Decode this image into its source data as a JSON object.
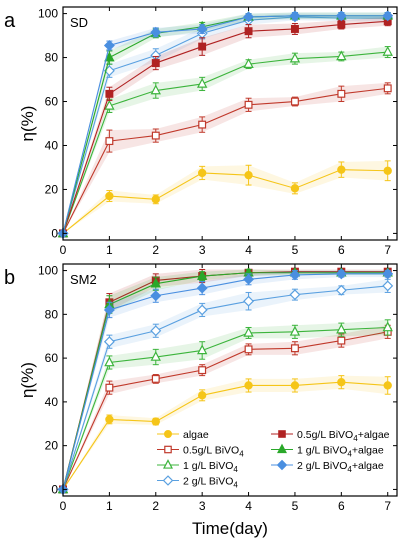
{
  "chart_data": [
    {
      "type": "line",
      "panel_letter": "a",
      "inset_label": "SD",
      "xlabel": "",
      "ylabel": "η(%)",
      "xlim": [
        0,
        7.2
      ],
      "ylim": [
        -3,
        103
      ],
      "x_ticks": [
        0,
        1,
        2,
        3,
        4,
        5,
        6,
        7
      ],
      "y_ticks": [
        0,
        20,
        40,
        60,
        80,
        100
      ],
      "x": [
        0,
        1,
        2,
        3,
        4,
        5,
        6,
        7
      ],
      "series": [
        {
          "name": "algae",
          "color": "#f5c518",
          "marker": "circle",
          "filled": true,
          "values": [
            0,
            17,
            15.5,
            27.5,
            26.5,
            20.5,
            29,
            28.5
          ],
          "errors": [
            0,
            2.5,
            2,
            3,
            4.5,
            2.5,
            3.5,
            4.5
          ]
        },
        {
          "name": "0.5g/L BiVO4",
          "color": "#c0392b",
          "marker": "square",
          "filled": false,
          "values": [
            0,
            42,
            44.5,
            49.5,
            58.5,
            60,
            63.5,
            66
          ],
          "errors": [
            0,
            5,
            3,
            3.5,
            3,
            2,
            3.5,
            2.5
          ]
        },
        {
          "name": "1 g/L BiVO4",
          "color": "#3cb43c",
          "marker": "triangle",
          "filled": false,
          "values": [
            0,
            58,
            65,
            68,
            77,
            79.5,
            80.5,
            82.5
          ],
          "errors": [
            0,
            3,
            3.5,
            3,
            2,
            2.5,
            2,
            2.5
          ]
        },
        {
          "name": "2 g/L BiVO4",
          "color": "#5aa0e0",
          "marker": "diamond",
          "filled": false,
          "values": [
            0,
            74,
            81,
            91,
            97,
            98.5,
            98,
            98
          ],
          "errors": [
            0,
            3,
            3,
            2.5,
            2,
            1.5,
            1.5,
            1.5
          ]
        },
        {
          "name": "0.5g/L BiVO4+algae",
          "color": "#b02222",
          "marker": "square",
          "filled": true,
          "values": [
            0,
            63.5,
            77.5,
            85,
            92,
            93,
            95,
            96.5
          ],
          "errors": [
            0,
            3,
            3,
            4,
            3,
            2.5,
            2,
            2
          ]
        },
        {
          "name": "1 g/L BiVO4+algae",
          "color": "#2aa82a",
          "marker": "triangle",
          "filled": true,
          "values": [
            0,
            80,
            91,
            94,
            98.5,
            99,
            99,
            99
          ],
          "errors": [
            0,
            3,
            2,
            2,
            1.5,
            1.5,
            1.5,
            1.5
          ]
        },
        {
          "name": "2 g/L BiVO4+algae",
          "color": "#4a8fe0",
          "marker": "diamond",
          "filled": true,
          "values": [
            0,
            85.5,
            91.5,
            93,
            98.5,
            99,
            99,
            99
          ],
          "errors": [
            0,
            2,
            2,
            2,
            1.5,
            1.5,
            1.5,
            1.5
          ]
        }
      ]
    },
    {
      "type": "line",
      "panel_letter": "b",
      "inset_label": "SM2",
      "xlabel": "Time(day)",
      "ylabel": "η(%)",
      "xlim": [
        0,
        7.2
      ],
      "ylim": [
        -3,
        103
      ],
      "x_ticks": [
        0,
        1,
        2,
        3,
        4,
        5,
        6,
        7
      ],
      "y_ticks": [
        0,
        20,
        40,
        60,
        80,
        100
      ],
      "x": [
        0,
        1,
        2,
        3,
        4,
        5,
        6,
        7
      ],
      "legend_position": "bottom-right",
      "series": [
        {
          "name": "algae",
          "color": "#f5c518",
          "marker": "circle",
          "filled": true,
          "values": [
            0,
            32,
            31,
            43,
            47.5,
            47.5,
            49,
            47.5
          ],
          "errors": [
            0,
            2,
            1.5,
            2.5,
            3,
            3,
            3,
            4
          ]
        },
        {
          "name": "0.5g/L BiVO4",
          "color": "#c0392b",
          "marker": "square",
          "filled": false,
          "values": [
            0,
            46.5,
            50.5,
            54.5,
            64,
            64.5,
            68,
            72
          ],
          "errors": [
            0,
            3,
            2,
            2.5,
            2.5,
            3,
            3,
            3
          ]
        },
        {
          "name": "1 g/L BiVO4",
          "color": "#3cb43c",
          "marker": "triangle",
          "filled": false,
          "values": [
            0,
            58,
            60.5,
            63.5,
            71.5,
            72,
            73,
            74
          ],
          "errors": [
            0,
            3,
            3.5,
            4,
            2.5,
            3,
            3,
            3.5
          ]
        },
        {
          "name": "2 g/L BiVO4",
          "color": "#5aa0e0",
          "marker": "diamond",
          "filled": false,
          "values": [
            0,
            67.5,
            72.5,
            82,
            86,
            89,
            91,
            93
          ],
          "errors": [
            0,
            3,
            3,
            3,
            4,
            2.5,
            2,
            3
          ]
        },
        {
          "name": "0.5g/L BiVO4+algae",
          "color": "#b02222",
          "marker": "square",
          "filled": true,
          "values": [
            0,
            85.5,
            95.5,
            97.5,
            99,
            99.5,
            99.5,
            99.5
          ],
          "errors": [
            0,
            4,
            3,
            3,
            1.5,
            1,
            1,
            1
          ]
        },
        {
          "name": "1 g/L BiVO4+algae",
          "color": "#2aa82a",
          "marker": "triangle",
          "filled": true,
          "values": [
            0,
            84.5,
            94,
            97.5,
            99,
            99,
            99,
            99
          ],
          "errors": [
            0,
            4,
            3,
            2,
            1.5,
            1,
            1,
            1
          ]
        },
        {
          "name": "2 g/L BiVO4+algae",
          "color": "#4a8fe0",
          "marker": "diamond",
          "filled": true,
          "values": [
            0,
            82,
            88.5,
            92,
            96,
            98,
            98.5,
            98.5
          ],
          "errors": [
            0,
            3.5,
            3,
            3,
            2.5,
            2,
            1.5,
            1.5
          ]
        }
      ],
      "legend": {
        "entries": [
          {
            "series": 0,
            "label": "algae",
            "sub": ""
          },
          {
            "series": 4,
            "label": "0.5g/L BiVO",
            "sub": "4",
            "suffix": "+algae"
          },
          {
            "series": 1,
            "label": "0.5g/L BiVO",
            "sub": "4",
            "suffix": ""
          },
          {
            "series": 5,
            "label": "1 g/L BiVO",
            "sub": "4",
            "suffix": "+algae"
          },
          {
            "series": 2,
            "label": "1 g/L BiVO",
            "sub": "4",
            "suffix": ""
          },
          {
            "series": 6,
            "label": "2 g/L BiVO",
            "sub": "4",
            "suffix": "+algae"
          },
          {
            "series": 3,
            "label": "2 g/L BiVO",
            "sub": "4",
            "suffix": ""
          }
        ]
      }
    }
  ]
}
